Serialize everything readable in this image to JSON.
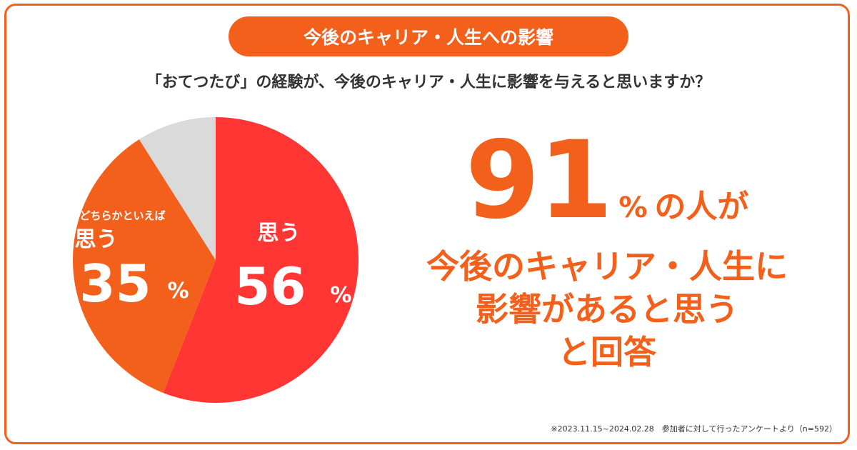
{
  "header": {
    "title": "今後のキャリア・人生への影響",
    "question": "「おてつたび」の経験が、今後のキャリア・人生に影響を与えると思いますか？"
  },
  "colors": {
    "brand_orange": "#f2601c",
    "red": "#ff3633",
    "gray": "#dadada"
  },
  "chart_data": {
    "type": "pie",
    "slices": [
      {
        "label": "思う",
        "value": 56,
        "color": "#ff3633",
        "value_text": "56",
        "pct": "%"
      },
      {
        "label": "どちらかといえば\n思う",
        "value": 35,
        "color": "#f2601c",
        "value_text": "35",
        "pct": "%",
        "label_top": "どちらかといえば",
        "label_main": "思う"
      },
      {
        "label": "",
        "value": 9,
        "color": "#dadada"
      }
    ]
  },
  "headline": {
    "number": "91",
    "percent": "%",
    "suffix": "の人が",
    "line1": "今後のキャリア・人生に",
    "line2": "影響があると思う",
    "line3": "と回答"
  },
  "footnote": "※2023.11.15~2024.02.28　参加者に対して行ったアンケートより（n=592）"
}
